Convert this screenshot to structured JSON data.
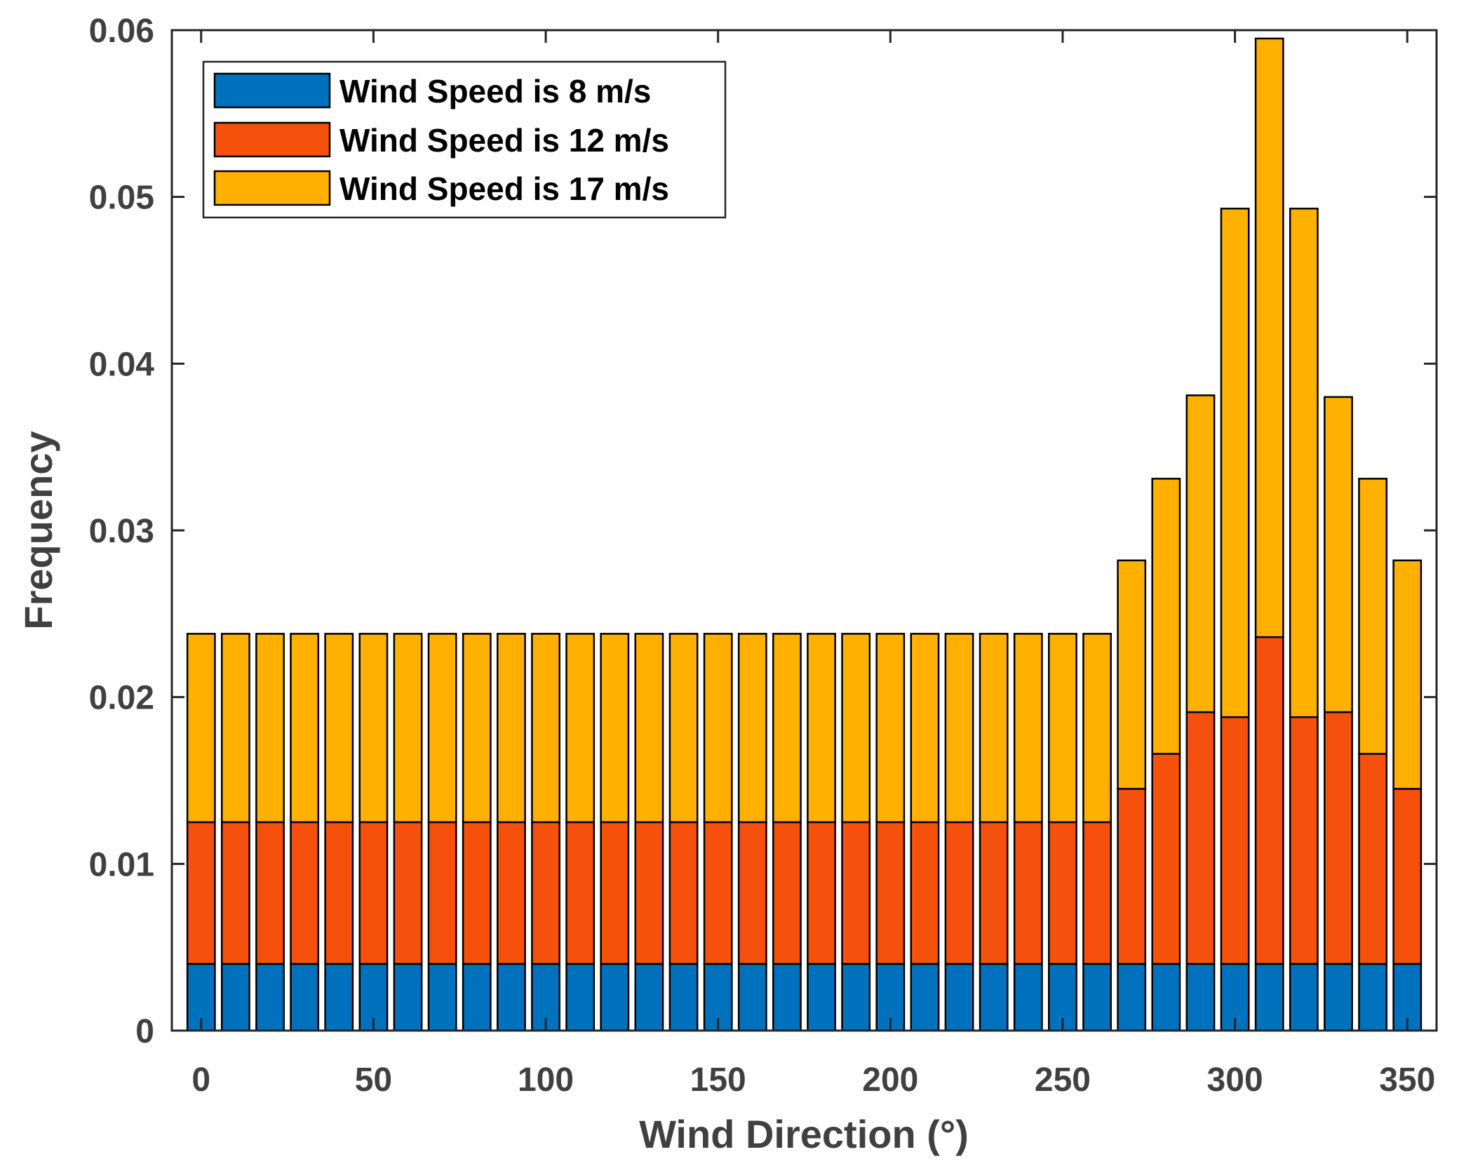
{
  "chart_data": {
    "type": "bar",
    "stacked": true,
    "xlabel": "Wind Direction (°)",
    "ylabel": "Frequency",
    "xlim": [
      -8.5,
      358.5
    ],
    "ylim": [
      0,
      0.06
    ],
    "x": [
      0,
      10,
      20,
      30,
      40,
      50,
      60,
      70,
      80,
      90,
      100,
      110,
      120,
      130,
      140,
      150,
      160,
      170,
      180,
      190,
      200,
      210,
      220,
      230,
      240,
      250,
      260,
      270,
      280,
      290,
      300,
      310,
      320,
      330,
      340,
      350
    ],
    "xticks": [
      0,
      50,
      100,
      150,
      200,
      250,
      300,
      350
    ],
    "xtick_labels": [
      "0",
      "50",
      "100",
      "150",
      "200",
      "250",
      "300",
      "350"
    ],
    "yticks": [
      0,
      0.01,
      0.02,
      0.03,
      0.04,
      0.05,
      0.06
    ],
    "ytick_labels": [
      "0",
      "0.01",
      "0.02",
      "0.03",
      "0.04",
      "0.05",
      "0.06"
    ],
    "legend_position": "top-left",
    "series": [
      {
        "name": "Wind Speed is 8 m/s",
        "color": "#0072BD",
        "values": [
          0.004,
          0.004,
          0.004,
          0.004,
          0.004,
          0.004,
          0.004,
          0.004,
          0.004,
          0.004,
          0.004,
          0.004,
          0.004,
          0.004,
          0.004,
          0.004,
          0.004,
          0.004,
          0.004,
          0.004,
          0.004,
          0.004,
          0.004,
          0.004,
          0.004,
          0.004,
          0.004,
          0.004,
          0.004,
          0.004,
          0.004,
          0.004,
          0.004,
          0.004,
          0.004,
          0.004
        ]
      },
      {
        "name": "Wind Speed is 12 m/s",
        "color": "#F6510C",
        "values": [
          0.0085,
          0.0085,
          0.0085,
          0.0085,
          0.0085,
          0.0085,
          0.0085,
          0.0085,
          0.0085,
          0.0085,
          0.0085,
          0.0085,
          0.0085,
          0.0085,
          0.0085,
          0.0085,
          0.0085,
          0.0085,
          0.0085,
          0.0085,
          0.0085,
          0.0085,
          0.0085,
          0.0085,
          0.0085,
          0.0085,
          0.0085,
          0.0105,
          0.0126,
          0.0151,
          0.0148,
          0.0196,
          0.0148,
          0.0151,
          0.0126,
          0.0105
        ]
      },
      {
        "name": "Wind Speed is 17 m/s",
        "color": "#FFB000",
        "values": [
          0.0113,
          0.0113,
          0.0113,
          0.0113,
          0.0113,
          0.0113,
          0.0113,
          0.0113,
          0.0113,
          0.0113,
          0.0113,
          0.0113,
          0.0113,
          0.0113,
          0.0113,
          0.0113,
          0.0113,
          0.0113,
          0.0113,
          0.0113,
          0.0113,
          0.0113,
          0.0113,
          0.0113,
          0.0113,
          0.0113,
          0.0113,
          0.0137,
          0.0165,
          0.019,
          0.0305,
          0.0359,
          0.0305,
          0.0189,
          0.0165,
          0.0137
        ]
      }
    ]
  }
}
